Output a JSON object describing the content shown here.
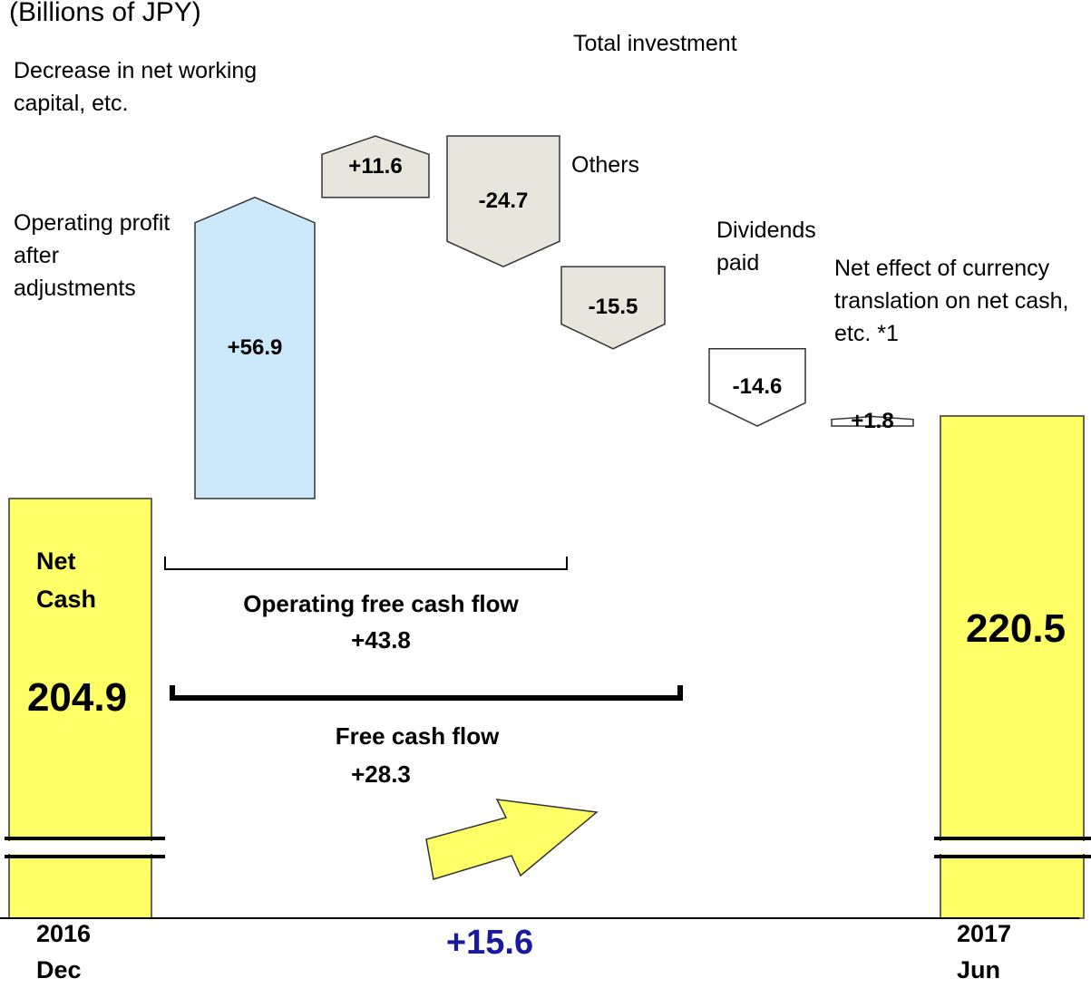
{
  "chart_data": {
    "type": "waterfall",
    "unit": "(Billions of JPY)",
    "start": {
      "name": "Net Cash",
      "category": "2016 Dec",
      "value": 204.9,
      "color": "#ffff66"
    },
    "steps": {
      "categories": [
        "Operating profit after adjustments",
        "Decrease in net working capital, etc.",
        "Total investment",
        "Others",
        "Dividends paid",
        "Net effect of currency translation on net cash, etc. *1"
      ],
      "values": [
        56.9,
        11.6,
        -24.7,
        -15.5,
        -14.6,
        1.8
      ],
      "value_labels": [
        "+56.9",
        "+11.6",
        "-24.7",
        "-15.5",
        "-14.6",
        "+1.8"
      ],
      "colors": [
        "#cce9fb",
        "#e8e6dc",
        "#e8e6dc",
        "#e8e6dc",
        "#ffffff",
        "#ffffff"
      ]
    },
    "end": {
      "category": "2017 Jun",
      "value": 220.5,
      "color": "#ffff66"
    },
    "subtotals": [
      {
        "name": "Operating free cash flow",
        "value": 43.8,
        "value_label": "+43.8"
      },
      {
        "name": "Free cash flow",
        "value": 28.3,
        "value_label": "+28.3"
      }
    ],
    "change": {
      "value": 15.6,
      "value_label": "+15.6"
    }
  }
}
